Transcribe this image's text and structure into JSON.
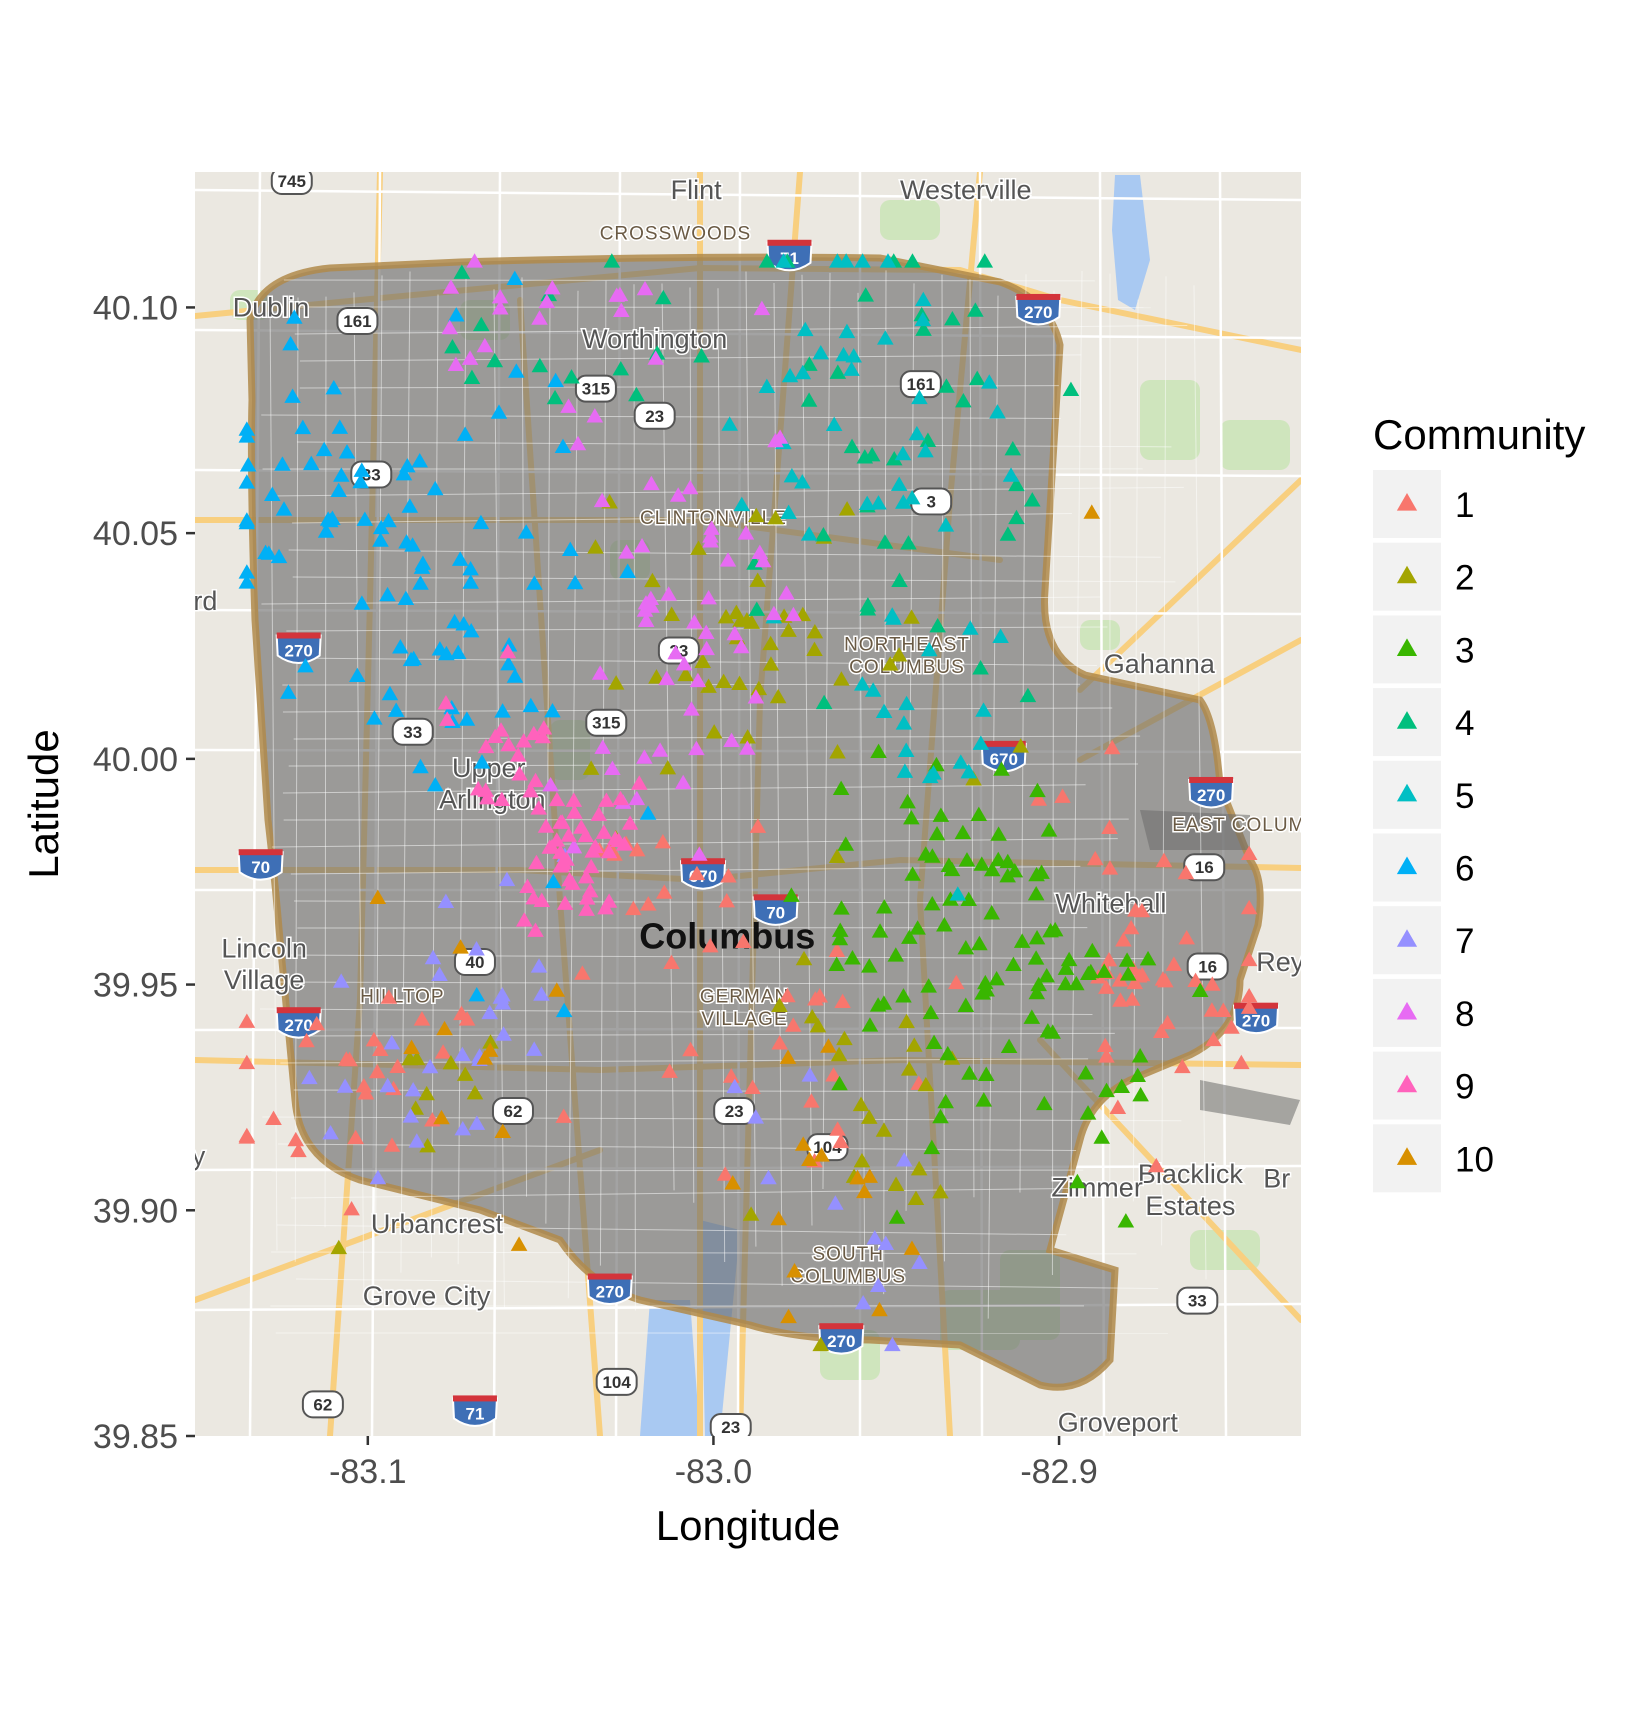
{
  "chart_data": {
    "type": "scatter",
    "xlabel": "Longitude",
    "ylabel": "Latitude",
    "xlim": [
      -83.15,
      -82.83
    ],
    "ylim": [
      39.85,
      40.13
    ],
    "x_ticks": [
      "-83.1",
      "-83.0",
      "-82.9"
    ],
    "x_tick_values": [
      -83.1,
      -83.0,
      -82.9
    ],
    "y_ticks": [
      "39.85",
      "39.90",
      "39.95",
      "40.00",
      "40.05",
      "40.10"
    ],
    "y_tick_values": [
      39.85,
      39.9,
      39.95,
      40.0,
      40.05,
      40.1
    ],
    "marker": "triangle",
    "legend": {
      "title": "Community",
      "position": "right",
      "entries": [
        {
          "label": "1",
          "color": "#F8766D"
        },
        {
          "label": "2",
          "color": "#A3A500"
        },
        {
          "label": "3",
          "color": "#39B600"
        },
        {
          "label": "4",
          "color": "#00BF7D"
        },
        {
          "label": "5",
          "color": "#00BFC4"
        },
        {
          "label": "6",
          "color": "#00B0F6"
        },
        {
          "label": "7",
          "color": "#9590FF"
        },
        {
          "label": "8",
          "color": "#E76BF3"
        },
        {
          "label": "9",
          "color": "#FF62BC"
        },
        {
          "label": "10",
          "color": "#D89000"
        }
      ]
    },
    "series": [
      {
        "name": "1",
        "clusters": [
          [
            -83.1,
            39.93,
            0.02,
            0.015,
            28
          ],
          [
            -82.88,
            39.96,
            0.02,
            0.02,
            30
          ],
          [
            -82.98,
            39.94,
            0.02,
            0.02,
            24
          ],
          [
            -82.86,
            39.95,
            0.015,
            0.01,
            16
          ],
          [
            -83.02,
            39.98,
            0.015,
            0.01,
            12
          ]
        ]
      },
      {
        "name": "2",
        "clusters": [
          [
            -82.98,
            40.02,
            0.025,
            0.02,
            45
          ],
          [
            -82.96,
            39.93,
            0.015,
            0.02,
            22
          ],
          [
            -83.08,
            39.92,
            0.015,
            0.01,
            10
          ]
        ]
      },
      {
        "name": "3",
        "clusters": [
          [
            -82.93,
            39.96,
            0.02,
            0.02,
            75
          ],
          [
            -82.9,
            39.94,
            0.015,
            0.02,
            30
          ]
        ]
      },
      {
        "name": "4",
        "clusters": [
          [
            -82.95,
            40.07,
            0.025,
            0.03,
            40
          ],
          [
            -83.04,
            40.09,
            0.02,
            0.01,
            15
          ]
        ]
      },
      {
        "name": "5",
        "clusters": [
          [
            -82.96,
            40.07,
            0.02,
            0.025,
            40
          ],
          [
            -82.94,
            40.02,
            0.015,
            0.015,
            18
          ]
        ]
      },
      {
        "name": "6",
        "clusters": [
          [
            -83.08,
            40.04,
            0.025,
            0.03,
            70
          ],
          [
            -83.12,
            40.06,
            0.012,
            0.015,
            25
          ]
        ]
      },
      {
        "name": "7",
        "clusters": [
          [
            -83.08,
            39.94,
            0.02,
            0.015,
            30
          ],
          [
            -82.97,
            39.9,
            0.02,
            0.02,
            12
          ]
        ]
      },
      {
        "name": "8",
        "clusters": [
          [
            -83.01,
            40.04,
            0.015,
            0.03,
            55
          ],
          [
            -83.05,
            40.1,
            0.02,
            0.01,
            15
          ]
        ]
      },
      {
        "name": "9",
        "clusters": [
          [
            -83.04,
            39.98,
            0.01,
            0.008,
            45
          ],
          [
            -83.06,
            40.0,
            0.01,
            0.008,
            20
          ]
        ]
      },
      {
        "name": "10",
        "clusters": [
          [
            -82.97,
            39.9,
            0.02,
            0.02,
            14
          ],
          [
            -83.08,
            39.93,
            0.02,
            0.02,
            10
          ],
          [
            -82.89,
            40.05,
            0.005,
            0.003,
            1
          ]
        ]
      }
    ]
  },
  "map": {
    "place_labels": [
      {
        "text": "Flint",
        "lon": -83.005,
        "lat": 40.124
      },
      {
        "text": "Westerville",
        "lon": -82.927,
        "lat": 40.124
      },
      {
        "text": "Dublin",
        "lon": -83.128,
        "lat": 40.098
      },
      {
        "text": "Worthington",
        "lon": -83.017,
        "lat": 40.091
      },
      {
        "text": "Gahanna",
        "lon": -82.871,
        "lat": 40.019
      },
      {
        "text": "Upper",
        "lon": -83.065,
        "lat": 39.996
      },
      {
        "text": "Arlington",
        "lon": -83.064,
        "lat": 39.989
      },
      {
        "text": "Lincoln",
        "lon": -83.13,
        "lat": 39.956
      },
      {
        "text": "Village",
        "lon": -83.13,
        "lat": 39.949
      },
      {
        "text": "Blacklick",
        "lon": -82.862,
        "lat": 39.906
      },
      {
        "text": "Estates",
        "lon": -82.862,
        "lat": 39.899
      },
      {
        "text": "Zimmer",
        "lon": -82.889,
        "lat": 39.903
      },
      {
        "text": "Urbancrest",
        "lon": -83.08,
        "lat": 39.895
      },
      {
        "text": "Grove City",
        "lon": -83.083,
        "lat": 39.879
      },
      {
        "text": "Groveport",
        "lon": -82.883,
        "lat": 39.851
      },
      {
        "text": "Whitehall",
        "lon": -82.885,
        "lat": 39.966
      },
      {
        "text": "Rey",
        "lon": -82.836,
        "lat": 39.953
      },
      {
        "text": "Br",
        "lon": -82.837,
        "lat": 39.905
      },
      {
        "text": "rd",
        "lon": -83.147,
        "lat": 40.033
      },
      {
        "text": "y",
        "lon": -83.149,
        "lat": 39.91
      }
    ],
    "big_labels": [
      {
        "text": "Columbus",
        "lon": -82.996,
        "lat": 39.958
      }
    ],
    "district_labels": [
      {
        "text": "CROSSWOODS",
        "lon": -83.011,
        "lat": 40.115
      },
      {
        "text": "NORTHEAST",
        "lon": -82.944,
        "lat": 40.024
      },
      {
        "text": "COLUMBUS",
        "lon": -82.944,
        "lat": 40.019
      },
      {
        "text": "EAST COLUM",
        "lon": -82.848,
        "lat": 39.984
      },
      {
        "text": "SOUTH",
        "lon": -82.961,
        "lat": 39.889
      },
      {
        "text": "COLUMBUS",
        "lon": -82.961,
        "lat": 39.884
      },
      {
        "text": "GERMAN",
        "lon": -82.991,
        "lat": 39.946
      },
      {
        "text": "VILLAGE",
        "lon": -82.991,
        "lat": 39.941
      },
      {
        "text": "HILLTOP",
        "lon": -83.09,
        "lat": 39.946
      },
      {
        "text": "CLINTONVILLE",
        "lon": -83.0,
        "lat": 40.052
      }
    ],
    "interstate_shields": [
      {
        "text": "71",
        "lon": -82.978,
        "lat": 40.111
      },
      {
        "text": "270",
        "lon": -82.906,
        "lat": 40.099
      },
      {
        "text": "270",
        "lon": -83.12,
        "lat": 40.024
      },
      {
        "text": "270",
        "lon": -82.856,
        "lat": 39.992
      },
      {
        "text": "670",
        "lon": -82.916,
        "lat": 40.0
      },
      {
        "text": "670",
        "lon": -83.003,
        "lat": 39.974
      },
      {
        "text": "70",
        "lon": -83.131,
        "lat": 39.976
      },
      {
        "text": "270",
        "lon": -83.12,
        "lat": 39.941
      },
      {
        "text": "270",
        "lon": -82.843,
        "lat": 39.942
      },
      {
        "text": "270",
        "lon": -83.03,
        "lat": 39.882
      },
      {
        "text": "270",
        "lon": -82.963,
        "lat": 39.871
      },
      {
        "text": "71",
        "lon": -83.069,
        "lat": 39.855
      },
      {
        "text": "70",
        "lon": -82.982,
        "lat": 39.966
      }
    ],
    "route_shields": [
      {
        "text": "745",
        "lon": -83.122,
        "lat": 40.128
      },
      {
        "text": "161",
        "lon": -83.103,
        "lat": 40.097
      },
      {
        "text": "315",
        "lon": -83.034,
        "lat": 40.082
      },
      {
        "text": "23",
        "lon": -83.017,
        "lat": 40.076
      },
      {
        "text": "33",
        "lon": -83.099,
        "lat": 40.063
      },
      {
        "text": "161",
        "lon": -82.94,
        "lat": 40.083
      },
      {
        "text": "3",
        "lon": -82.937,
        "lat": 40.057
      },
      {
        "text": "23",
        "lon": -83.01,
        "lat": 40.024
      },
      {
        "text": "33",
        "lon": -83.087,
        "lat": 40.006
      },
      {
        "text": "315",
        "lon": -83.031,
        "lat": 40.008
      },
      {
        "text": "16",
        "lon": -82.858,
        "lat": 39.976
      },
      {
        "text": "40",
        "lon": -83.069,
        "lat": 39.955
      },
      {
        "text": "16",
        "lon": -82.857,
        "lat": 39.954
      },
      {
        "text": "62",
        "lon": -83.058,
        "lat": 39.922
      },
      {
        "text": "23",
        "lon": -82.994,
        "lat": 39.922
      },
      {
        "text": "104",
        "lon": -82.967,
        "lat": 39.914
      },
      {
        "text": "104",
        "lon": -83.028,
        "lat": 39.862
      },
      {
        "text": "33",
        "lon": -82.86,
        "lat": 39.88
      },
      {
        "text": "62",
        "lon": -83.113,
        "lat": 39.857
      },
      {
        "text": "23",
        "lon": -82.995,
        "lat": 39.852
      }
    ]
  }
}
